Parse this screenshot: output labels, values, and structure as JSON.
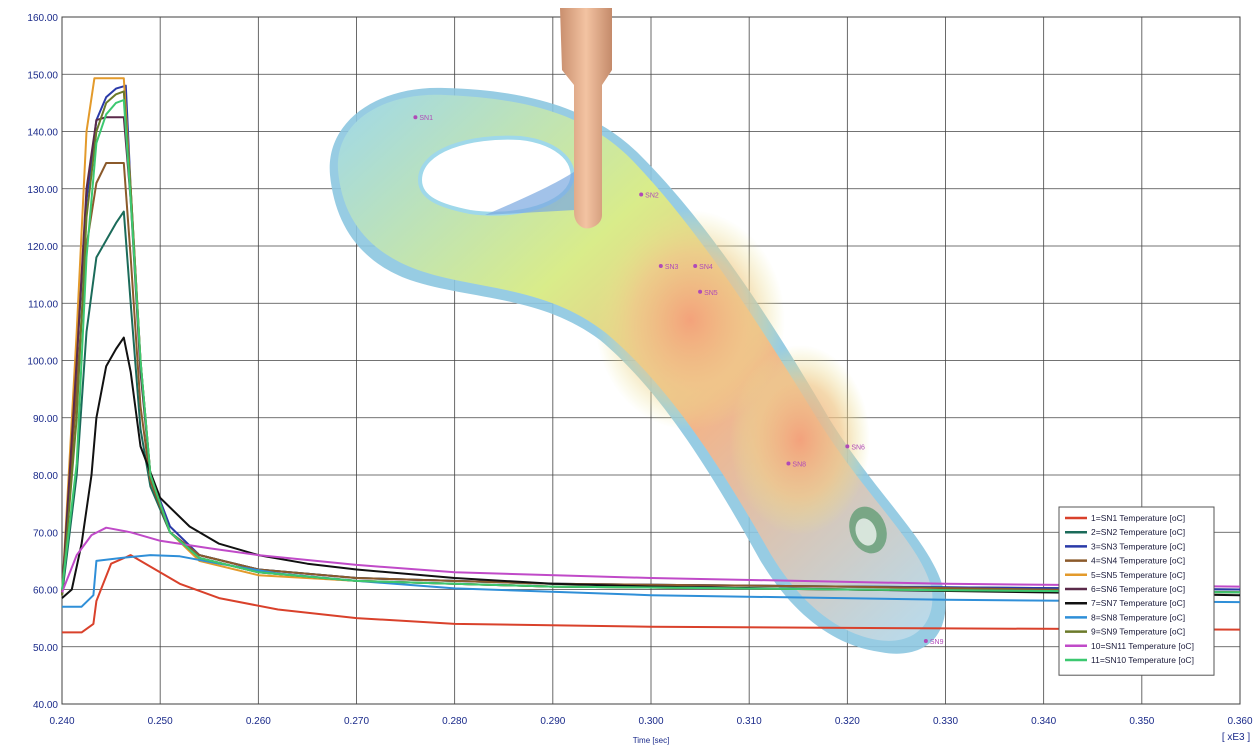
{
  "chart_data": {
    "type": "line",
    "xlabel": "Time [sec]",
    "ylabel": "",
    "x_multiplier": "[ xE3 ]",
    "xlim": [
      0.24,
      0.36
    ],
    "ylim": [
      40,
      160
    ],
    "grid": true,
    "legend_placement": "bottom-right",
    "x_ticks": [
      "0.240",
      "0.250",
      "0.260",
      "0.270",
      "0.280",
      "0.290",
      "0.300",
      "0.310",
      "0.320",
      "0.330",
      "0.340",
      "0.350",
      "0.360"
    ],
    "y_ticks": [
      "40.00",
      "50.00",
      "60.00",
      "70.00",
      "80.00",
      "90.00",
      "100.00",
      "110.00",
      "120.00",
      "130.00",
      "140.00",
      "150.00",
      "160.00"
    ],
    "series": [
      {
        "name": "1=SN1 Temperature [oC]",
        "color": "#d9412b",
        "x": [
          0.24,
          0.242,
          0.2432,
          0.2435,
          0.245,
          0.247,
          0.249,
          0.252,
          0.256,
          0.262,
          0.27,
          0.28,
          0.3,
          0.33,
          0.36
        ],
        "y": [
          52.5,
          52.5,
          54,
          58,
          64.5,
          66,
          64,
          61,
          58.5,
          56.5,
          55,
          54,
          53.5,
          53.2,
          53
        ]
      },
      {
        "name": "2=SN2 Temperature [oC]",
        "color": "#1b6b5a",
        "x": [
          0.24,
          0.2415,
          0.2425,
          0.2435,
          0.2445,
          0.2455,
          0.2463,
          0.247,
          0.248,
          0.249,
          0.251,
          0.254,
          0.26,
          0.27,
          0.29,
          0.32,
          0.36
        ],
        "y": [
          59,
          80,
          105,
          118,
          121,
          124,
          126,
          110,
          88,
          78,
          70,
          66,
          63.5,
          62,
          61,
          60.5,
          60
        ]
      },
      {
        "name": "3=SN3 Temperature [oC]",
        "color": "#2a3aa8",
        "x": [
          0.24,
          0.2415,
          0.2425,
          0.2435,
          0.2445,
          0.2455,
          0.2465,
          0.247,
          0.248,
          0.249,
          0.251,
          0.254,
          0.26,
          0.27,
          0.29,
          0.32,
          0.36
        ],
        "y": [
          59,
          100,
          128,
          142,
          146,
          147.5,
          148,
          130,
          100,
          80,
          71,
          66,
          63.5,
          62,
          61,
          60.5,
          60
        ]
      },
      {
        "name": "4=SN4 Temperature [oC]",
        "color": "#8b5a2b",
        "x": [
          0.24,
          0.2415,
          0.2425,
          0.2435,
          0.2445,
          0.2463,
          0.247,
          0.248,
          0.249,
          0.251,
          0.254,
          0.26,
          0.27,
          0.29,
          0.32,
          0.36
        ],
        "y": [
          59,
          95,
          120,
          131,
          134.5,
          134.5,
          118,
          92,
          79,
          70,
          66,
          63.5,
          62,
          61,
          60.5,
          59.5
        ]
      },
      {
        "name": "5=SN5 Temperature [oC]",
        "color": "#e39a2b",
        "x": [
          0.24,
          0.2415,
          0.2425,
          0.2433,
          0.2463,
          0.247,
          0.248,
          0.249,
          0.251,
          0.254,
          0.26,
          0.27,
          0.29,
          0.32,
          0.36
        ],
        "y": [
          59,
          105,
          140,
          149.3,
          149.3,
          130,
          100,
          80,
          70,
          65,
          62.5,
          61.5,
          60.5,
          60,
          59.5
        ]
      },
      {
        "name": "6=SN6 Temperature [oC]",
        "color": "#5a2a4a",
        "x": [
          0.24,
          0.2415,
          0.2425,
          0.2435,
          0.2445,
          0.2463,
          0.247,
          0.248,
          0.249,
          0.251,
          0.254,
          0.26,
          0.27,
          0.29,
          0.32,
          0.36
        ],
        "y": [
          59,
          100,
          130,
          142,
          142.5,
          142.5,
          128,
          98,
          80,
          70,
          65.5,
          63,
          61.5,
          60.5,
          60,
          59.5
        ]
      },
      {
        "name": "7=SN7 Temperature [oC]",
        "color": "#111111",
        "x": [
          0.24,
          0.241,
          0.242,
          0.243,
          0.2435,
          0.2445,
          0.2455,
          0.2463,
          0.247,
          0.248,
          0.25,
          0.253,
          0.256,
          0.26,
          0.265,
          0.27,
          0.28,
          0.29,
          0.3,
          0.32,
          0.36
        ],
        "y": [
          58.5,
          60,
          68,
          80,
          90,
          99,
          102,
          104,
          98,
          85,
          76,
          71,
          68,
          66,
          64.5,
          63.5,
          62,
          61,
          60.5,
          60,
          59
        ]
      },
      {
        "name": "8=SN8 Temperature [oC]",
        "color": "#2f8fd8",
        "x": [
          0.24,
          0.242,
          0.2432,
          0.2435,
          0.246,
          0.249,
          0.252,
          0.256,
          0.262,
          0.27,
          0.28,
          0.3,
          0.33,
          0.36
        ],
        "y": [
          57,
          57,
          59,
          65,
          65.5,
          66,
          65.8,
          64.5,
          62.8,
          61.5,
          60.2,
          59,
          58.2,
          57.8
        ]
      },
      {
        "name": "9=SN9 Temperature [oC]",
        "color": "#6b7a2a",
        "x": [
          0.24,
          0.2415,
          0.2425,
          0.2435,
          0.2445,
          0.2455,
          0.2463,
          0.247,
          0.248,
          0.249,
          0.251,
          0.254,
          0.26,
          0.27,
          0.29,
          0.32,
          0.36
        ],
        "y": [
          59,
          90,
          125,
          140,
          145,
          146.5,
          147,
          130,
          100,
          80,
          70,
          65.5,
          63,
          61.5,
          60.5,
          60,
          59.5
        ]
      },
      {
        "name": "10=SN11 Temperature [oC]",
        "color": "#c04ac8",
        "x": [
          0.24,
          0.2415,
          0.243,
          0.2445,
          0.247,
          0.25,
          0.255,
          0.26,
          0.27,
          0.28,
          0.3,
          0.33,
          0.36
        ],
        "y": [
          59.5,
          66,
          69.5,
          70.8,
          70,
          68.5,
          67.2,
          66,
          64.3,
          63,
          62,
          61,
          60.5
        ]
      },
      {
        "name": "11=SN10 Temperature [oC]",
        "color": "#3cc870",
        "x": [
          0.24,
          0.2415,
          0.2425,
          0.2435,
          0.2445,
          0.2455,
          0.2463,
          0.247,
          0.248,
          0.249,
          0.251,
          0.254,
          0.26,
          0.27,
          0.29,
          0.32,
          0.36
        ],
        "y": [
          60,
          82,
          118,
          138,
          143,
          145,
          145.5,
          128,
          100,
          80,
          70,
          65.5,
          63,
          61.5,
          60.5,
          60,
          59.5
        ]
      }
    ]
  },
  "probe_labels": [
    {
      "text": "SN1",
      "x": 0.276,
      "y": 142.5
    },
    {
      "text": "SN2",
      "x": 0.299,
      "y": 129
    },
    {
      "text": "SN3",
      "x": 0.301,
      "y": 116.5
    },
    {
      "text": "SN4",
      "x": 0.3045,
      "y": 116.5
    },
    {
      "text": "SN5",
      "x": 0.305,
      "y": 112
    },
    {
      "text": "SN6",
      "x": 0.32,
      "y": 85
    },
    {
      "text": "SN8",
      "x": 0.314,
      "y": 82
    },
    {
      "text": "SN9",
      "x": 0.328,
      "y": 51
    }
  ]
}
